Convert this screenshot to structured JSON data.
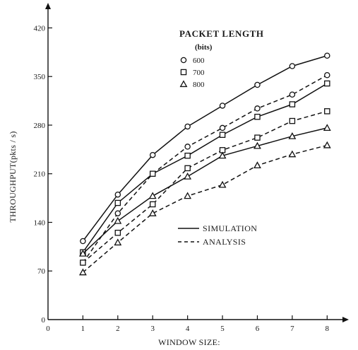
{
  "chart_data": {
    "type": "line",
    "xlabel": "WINDOW SIZE:",
    "ylabel": "THROUGHPUT(pkts / s)",
    "xlim": [
      0,
      8.5
    ],
    "ylim": [
      0,
      450
    ],
    "x_ticks": [
      "0",
      "1",
      "2",
      "3",
      "4",
      "5",
      "6",
      "7",
      "8"
    ],
    "y_ticks": [
      "0",
      "70",
      "140",
      "210",
      "280",
      "350",
      "420"
    ],
    "legend": {
      "title": "PACKET LENGTH",
      "subtitle": "(bits)",
      "placement": "top-center",
      "entries": [
        {
          "marker": "circle",
          "label": "600"
        },
        {
          "marker": "square",
          "label": "700"
        },
        {
          "marker": "triangle",
          "label": "800"
        }
      ]
    },
    "line_styles": [
      {
        "style": "solid",
        "label": "SIMULATION"
      },
      {
        "style": "dashed",
        "label": "ANALYSIS"
      }
    ],
    "grid": false,
    "series": [
      {
        "packet_length": "600",
        "method": "SIMULATION",
        "marker": "circle",
        "style": "solid",
        "x": [
          1,
          2,
          3,
          4,
          5,
          6,
          7,
          8
        ],
        "y": [
          113,
          180,
          237,
          278,
          308,
          338,
          365,
          380
        ]
      },
      {
        "packet_length": "600",
        "method": "ANALYSIS",
        "marker": "circle",
        "style": "dashed",
        "x": [
          1,
          2,
          3,
          4,
          5,
          6,
          7,
          8
        ],
        "y": [
          82,
          153,
          210,
          249,
          276,
          304,
          324,
          352
        ]
      },
      {
        "packet_length": "700",
        "method": "SIMULATION",
        "marker": "square",
        "style": "solid",
        "x": [
          1,
          2,
          3,
          4,
          5,
          6,
          7,
          8
        ],
        "y": [
          97,
          168,
          210,
          236,
          266,
          292,
          310,
          340
        ]
      },
      {
        "packet_length": "700",
        "method": "ANALYSIS",
        "marker": "square",
        "style": "dashed",
        "x": [
          1,
          2,
          3,
          4,
          5,
          6,
          7,
          8
        ],
        "y": [
          82,
          125,
          166,
          218,
          244,
          262,
          286,
          300
        ]
      },
      {
        "packet_length": "800",
        "method": "SIMULATION",
        "marker": "triangle",
        "style": "solid",
        "x": [
          1,
          2,
          3,
          4,
          5,
          6,
          7,
          8
        ],
        "y": [
          95,
          142,
          178,
          206,
          236,
          250,
          264,
          276
        ]
      },
      {
        "packet_length": "800",
        "method": "ANALYSIS",
        "marker": "triangle",
        "style": "dashed",
        "x": [
          1,
          2,
          3,
          4,
          5,
          6,
          7,
          8
        ],
        "y": [
          68,
          111,
          153,
          178,
          194,
          222,
          238,
          251
        ]
      }
    ]
  }
}
